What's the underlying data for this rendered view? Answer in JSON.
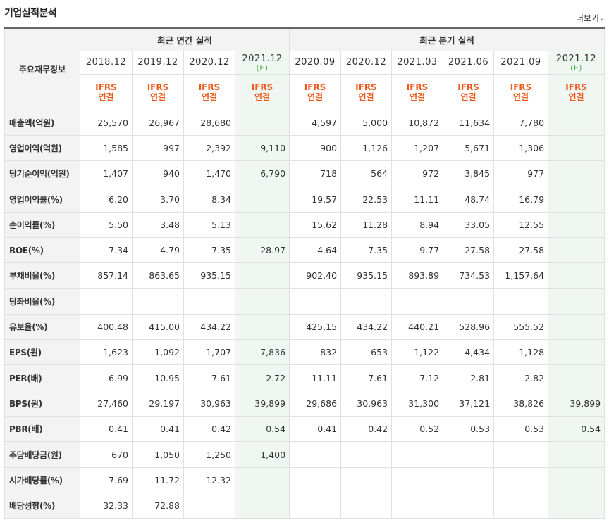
{
  "title": "기업실적분석",
  "more_label": "더보기",
  "more_arrow": "▸",
  "corner_label": "주요재무정보",
  "annual_label": "최근 연간 실적",
  "quarter_label": "최근 분기 실적",
  "periods": [
    {
      "label": "2018.12",
      "est": false,
      "e": ""
    },
    {
      "label": "2019.12",
      "est": false,
      "e": ""
    },
    {
      "label": "2020.12",
      "est": false,
      "e": ""
    },
    {
      "label": "2021.12",
      "est": true,
      "e": "(E)"
    },
    {
      "label": "2020.09",
      "est": false,
      "e": ""
    },
    {
      "label": "2020.12",
      "est": false,
      "e": ""
    },
    {
      "label": "2021.03",
      "est": false,
      "e": ""
    },
    {
      "label": "2021.06",
      "est": false,
      "e": ""
    },
    {
      "label": "2021.09",
      "est": false,
      "e": ""
    },
    {
      "label": "2021.12",
      "est": true,
      "e": "(E)"
    }
  ],
  "ifrs_line1": "IFRS",
  "ifrs_line2": "연결",
  "rows": [
    {
      "label": "매출액(억원)",
      "values": [
        "25,570",
        "26,967",
        "28,680",
        "",
        "4,597",
        "5,000",
        "10,872",
        "11,634",
        "7,780",
        ""
      ]
    },
    {
      "label": "영업이익(억원)",
      "values": [
        "1,585",
        "997",
        "2,392",
        "9,110",
        "900",
        "1,126",
        "1,207",
        "5,671",
        "1,306",
        ""
      ]
    },
    {
      "label": "당기순이익(억원)",
      "values": [
        "1,407",
        "940",
        "1,470",
        "6,790",
        "718",
        "564",
        "972",
        "3,845",
        "977",
        ""
      ]
    },
    {
      "label": "영업이익률(%)",
      "values": [
        "6.20",
        "3.70",
        "8.34",
        "",
        "19.57",
        "22.53",
        "11.11",
        "48.74",
        "16.79",
        ""
      ]
    },
    {
      "label": "순이익률(%)",
      "values": [
        "5.50",
        "3.48",
        "5.13",
        "",
        "15.62",
        "11.28",
        "8.94",
        "33.05",
        "12.55",
        ""
      ]
    },
    {
      "label": "ROE(%)",
      "values": [
        "7.34",
        "4.79",
        "7.35",
        "28.97",
        "4.64",
        "7.35",
        "9.77",
        "27.58",
        "27.58",
        ""
      ]
    },
    {
      "label": "부채비율(%)",
      "values": [
        "857.14",
        "863.65",
        "935.15",
        "",
        "902.40",
        "935.15",
        "893.89",
        "734.53",
        "1,157.64",
        ""
      ]
    },
    {
      "label": "당좌비율(%)",
      "values": [
        "",
        "",
        "",
        "",
        "",
        "",
        "",
        "",
        "",
        ""
      ]
    },
    {
      "label": "유보율(%)",
      "values": [
        "400.48",
        "415.00",
        "434.22",
        "",
        "425.15",
        "434.22",
        "440.21",
        "528.96",
        "555.52",
        ""
      ]
    },
    {
      "label": "EPS(원)",
      "values": [
        "1,623",
        "1,092",
        "1,707",
        "7,836",
        "832",
        "653",
        "1,122",
        "4,434",
        "1,128",
        ""
      ]
    },
    {
      "label": "PER(배)",
      "values": [
        "6.99",
        "10.95",
        "7.61",
        "2.72",
        "11.11",
        "7.61",
        "7.12",
        "2.81",
        "2.82",
        ""
      ]
    },
    {
      "label": "BPS(원)",
      "values": [
        "27,460",
        "29,197",
        "30,963",
        "39,899",
        "29,686",
        "30,963",
        "31,300",
        "37,121",
        "38,826",
        "39,899"
      ]
    },
    {
      "label": "PBR(배)",
      "values": [
        "0.41",
        "0.41",
        "0.42",
        "0.54",
        "0.41",
        "0.42",
        "0.52",
        "0.53",
        "0.53",
        "0.54"
      ]
    },
    {
      "label": "주당배당금(원)",
      "values": [
        "670",
        "1,050",
        "1,250",
        "1,400",
        "",
        "",
        "",
        "",
        "",
        ""
      ]
    },
    {
      "label": "시가배당률(%)",
      "values": [
        "7.69",
        "11.72",
        "12.32",
        "",
        "",
        "",
        "",
        "",
        "",
        ""
      ]
    },
    {
      "label": "배당성향(%)",
      "values": [
        "32.33",
        "72.88",
        "",
        "",
        "",
        "",
        "",
        "",
        "",
        ""
      ]
    }
  ],
  "colors": {
    "accent_orange": "#ee5a1e",
    "estimate_green": "#4caf50",
    "estimate_bg": "#f0f6f1",
    "header_bg": "#f3f3f3"
  }
}
